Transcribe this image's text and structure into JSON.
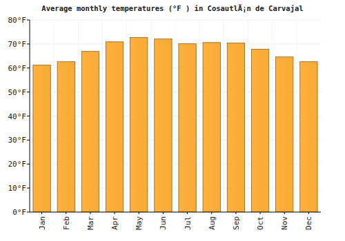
{
  "chart_data": {
    "type": "bar",
    "title": "Average monthly temperatures (°F ) in CosautlÃ¡n de Carvajal",
    "categories": [
      "Jan",
      "Feb",
      "Mar",
      "Apr",
      "May",
      "Jun",
      "Jul",
      "Aug",
      "Sep",
      "Oct",
      "Nov",
      "Dec"
    ],
    "values": [
      61.2,
      62.6,
      66.9,
      70.9,
      72.7,
      72.1,
      70.1,
      70.6,
      70.4,
      67.8,
      64.6,
      62.6
    ],
    "color": "#ffb03a",
    "ylim": [
      0,
      80
    ],
    "yticks": [
      {
        "value": 0,
        "label": "0°F"
      },
      {
        "value": 10,
        "label": "10°F"
      },
      {
        "value": 20,
        "label": "20°F"
      },
      {
        "value": 30,
        "label": "30°F"
      },
      {
        "value": 40,
        "label": "40°F"
      },
      {
        "value": 50,
        "label": "50°F"
      },
      {
        "value": 60,
        "label": "60°F"
      },
      {
        "value": 70,
        "label": "70°F"
      },
      {
        "value": 80,
        "label": "80°F"
      }
    ],
    "grid": true
  }
}
